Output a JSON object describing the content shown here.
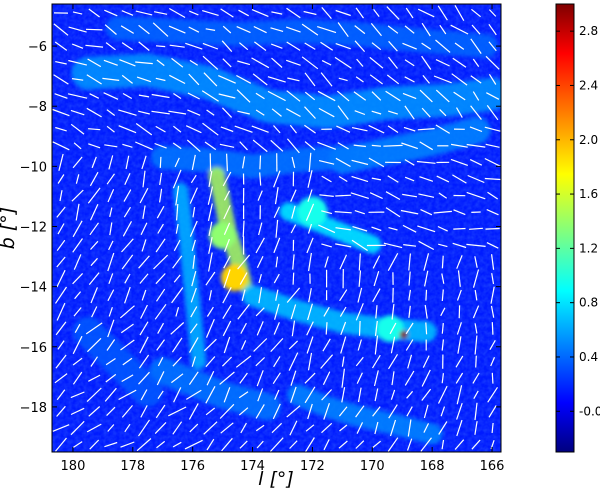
{
  "chart_data": {
    "type": "heatmap",
    "title": "",
    "xlabel": "l [°]",
    "ylabel": "b [°]",
    "xlim": [
      180.7,
      165.7
    ],
    "ylim": [
      -19.5,
      -4.6
    ],
    "xticks": [
      180,
      178,
      176,
      174,
      172,
      170,
      168,
      166
    ],
    "yticks": [
      -6,
      -8,
      -10,
      -12,
      -14,
      -16,
      -18
    ],
    "colorbar": {
      "range": [
        -0.3,
        3.0
      ],
      "ticks": [
        -0.0,
        0.4,
        0.8,
        1.2,
        1.6,
        2.0,
        2.4,
        2.8
      ],
      "tick_labels": [
        "-0.0",
        "0.4",
        "0.8",
        "1.2",
        "1.6",
        "2.0",
        "2.4",
        "2.8"
      ],
      "colormap": "jet"
    },
    "background_value": 0.2,
    "features": [
      {
        "kind": "filament",
        "l": [
          179.5,
          177.5,
          175.5,
          173.5,
          171.5,
          169.5,
          167.5,
          166.0
        ],
        "b": [
          -6.9,
          -6.8,
          -7.2,
          -8.0,
          -8.2,
          -7.9,
          -7.8,
          -7.6
        ],
        "value": 0.6,
        "width": 1.1
      },
      {
        "kind": "filament",
        "l": [
          178.5,
          176.5,
          174.5,
          172.5,
          170.5,
          168.5,
          166.2
        ],
        "b": [
          -5.4,
          -5.5,
          -5.6,
          -5.5,
          -5.6,
          -5.8,
          -6.0
        ],
        "value": 0.45,
        "width": 0.8
      },
      {
        "kind": "filament",
        "l": [
          171.0,
          169.5,
          168.0,
          166.5
        ],
        "b": [
          -9.8,
          -9.5,
          -9.2,
          -8.8
        ],
        "value": 0.55,
        "width": 0.9
      },
      {
        "kind": "filament",
        "l": [
          177.0,
          175.5,
          174.0,
          172.5,
          171.0
        ],
        "b": [
          -9.7,
          -9.8,
          -10.0,
          -9.8,
          -9.7
        ],
        "value": 0.5,
        "width": 0.8
      },
      {
        "kind": "filament",
        "l": [
          175.2,
          175.0,
          174.8,
          174.5,
          174.3
        ],
        "b": [
          -10.3,
          -11.2,
          -12.2,
          -13.1,
          -13.9
        ],
        "value": 1.5,
        "width": 0.55
      },
      {
        "kind": "filament",
        "l": [
          176.4,
          176.2,
          176.0,
          175.8
        ],
        "b": [
          -10.8,
          -12.5,
          -14.5,
          -16.5
        ],
        "value": 0.7,
        "width": 0.5
      },
      {
        "kind": "filament",
        "l": [
          172.8,
          172.0,
          171.0,
          170.0
        ],
        "b": [
          -11.5,
          -11.8,
          -12.2,
          -12.6
        ],
        "value": 0.9,
        "width": 0.6
      },
      {
        "kind": "filament",
        "l": [
          174.0,
          172.5,
          171.0,
          169.5,
          168.2
        ],
        "b": [
          -14.3,
          -14.8,
          -15.2,
          -15.4,
          -15.5
        ],
        "value": 0.75,
        "width": 0.7
      },
      {
        "kind": "filament",
        "l": [
          177.0,
          176.0,
          175.0,
          173.5
        ],
        "b": [
          -16.8,
          -17.2,
          -17.6,
          -18.0
        ],
        "value": 0.5,
        "width": 0.9
      },
      {
        "kind": "filament",
        "l": [
          172.5,
          171.5,
          170.5,
          169.2,
          168.0
        ],
        "b": [
          -17.6,
          -18.0,
          -18.3,
          -18.6,
          -18.9
        ],
        "value": 0.55,
        "width": 0.7
      },
      {
        "kind": "filament",
        "l": [
          179.5,
          178.5,
          177.5
        ],
        "b": [
          -15.5,
          -16.5,
          -17.5
        ],
        "value": 0.4,
        "width": 1.0
      },
      {
        "kind": "clump",
        "l": 174.6,
        "b": -13.7,
        "value": 1.9,
        "width": 0.45
      },
      {
        "kind": "clump",
        "l": 175.0,
        "b": -12.3,
        "value": 1.4,
        "width": 0.45
      },
      {
        "kind": "clump",
        "l": 172.0,
        "b": -11.5,
        "value": 1.0,
        "width": 0.5
      },
      {
        "kind": "clump",
        "l": 169.4,
        "b": -15.4,
        "value": 1.0,
        "width": 0.45
      },
      {
        "kind": "point_source",
        "l": 168.95,
        "b": -15.6,
        "value": 3.0,
        "width": 0.14
      }
    ],
    "polarization_vectors": "overplotted white line segments on a regular grid"
  }
}
